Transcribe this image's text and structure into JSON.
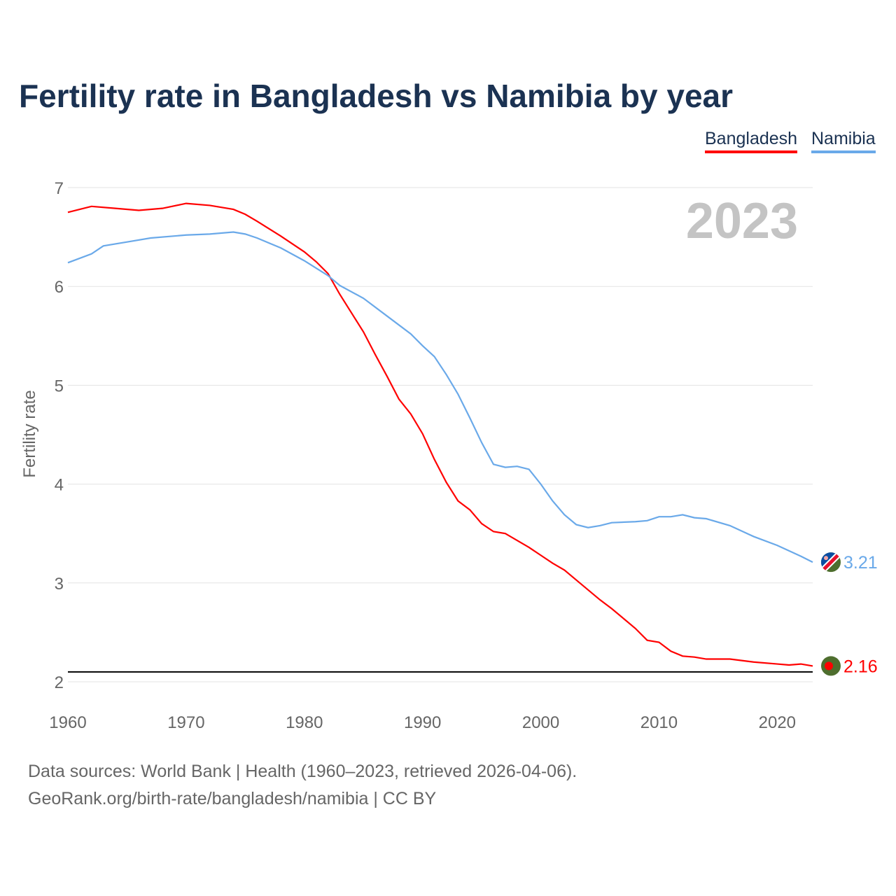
{
  "chart_data": {
    "type": "line",
    "title": "Fertility rate in Bangladesh vs Namibia by year",
    "ylabel": "Fertility rate",
    "xlabel": "",
    "xlim": [
      1960,
      2023
    ],
    "ylim": [
      2,
      7
    ],
    "xticks": [
      1960,
      1970,
      1980,
      1990,
      2000,
      2010,
      2020
    ],
    "yticks": [
      2,
      3,
      4,
      5,
      6,
      7
    ],
    "grid": true,
    "legend_position": "top-right",
    "year_label": "2023",
    "reference_line": 2.1,
    "series": [
      {
        "name": "Bangladesh",
        "color": "#ff0000",
        "end_label": "2.16",
        "x": [
          1960,
          1962,
          1964,
          1966,
          1968,
          1970,
          1972,
          1974,
          1975,
          1976,
          1978,
          1980,
          1981,
          1982,
          1983,
          1984,
          1985,
          1986,
          1987,
          1988,
          1989,
          1990,
          1991,
          1992,
          1993,
          1994,
          1995,
          1996,
          1997,
          1998,
          1999,
          2000,
          2001,
          2002,
          2003,
          2004,
          2005,
          2006,
          2007,
          2008,
          2009,
          2010,
          2011,
          2012,
          2013,
          2014,
          2016,
          2018,
          2020,
          2021,
          2022,
          2023
        ],
        "y": [
          6.75,
          6.81,
          6.79,
          6.77,
          6.79,
          6.84,
          6.82,
          6.78,
          6.73,
          6.66,
          6.51,
          6.35,
          6.25,
          6.13,
          5.92,
          5.73,
          5.54,
          5.31,
          5.09,
          4.86,
          4.71,
          4.51,
          4.25,
          4.02,
          3.83,
          3.74,
          3.6,
          3.52,
          3.5,
          3.43,
          3.36,
          3.28,
          3.2,
          3.13,
          3.03,
          2.93,
          2.83,
          2.74,
          2.64,
          2.54,
          2.42,
          2.4,
          2.31,
          2.26,
          2.25,
          2.23,
          2.23,
          2.2,
          2.18,
          2.17,
          2.18,
          2.16
        ]
      },
      {
        "name": "Namibia",
        "color": "#6aa9e9",
        "end_label": "3.21",
        "x": [
          1960,
          1962,
          1963,
          1965,
          1967,
          1970,
          1972,
          1974,
          1975,
          1976,
          1978,
          1980,
          1982,
          1983,
          1985,
          1987,
          1989,
          1990,
          1991,
          1992,
          1993,
          1994,
          1995,
          1996,
          1997,
          1998,
          1999,
          2000,
          2001,
          2002,
          2003,
          2004,
          2005,
          2006,
          2008,
          2009,
          2010,
          2011,
          2012,
          2013,
          2014,
          2016,
          2018,
          2020,
          2022,
          2023
        ],
        "y": [
          6.24,
          6.33,
          6.41,
          6.45,
          6.49,
          6.52,
          6.53,
          6.55,
          6.53,
          6.49,
          6.39,
          6.26,
          6.11,
          6.01,
          5.88,
          5.7,
          5.52,
          5.4,
          5.29,
          5.11,
          4.91,
          4.67,
          4.42,
          4.2,
          4.17,
          4.18,
          4.15,
          4.0,
          3.83,
          3.69,
          3.59,
          3.56,
          3.58,
          3.61,
          3.62,
          3.63,
          3.67,
          3.67,
          3.69,
          3.66,
          3.65,
          3.58,
          3.47,
          3.38,
          3.27,
          3.21
        ]
      }
    ]
  },
  "footer": {
    "line1": "Data sources: World Bank | Health (1960–2023, retrieved 2026-04-06).",
    "line2": "GeoRank.org/birth-rate/bangladesh/namibia | CC BY"
  }
}
